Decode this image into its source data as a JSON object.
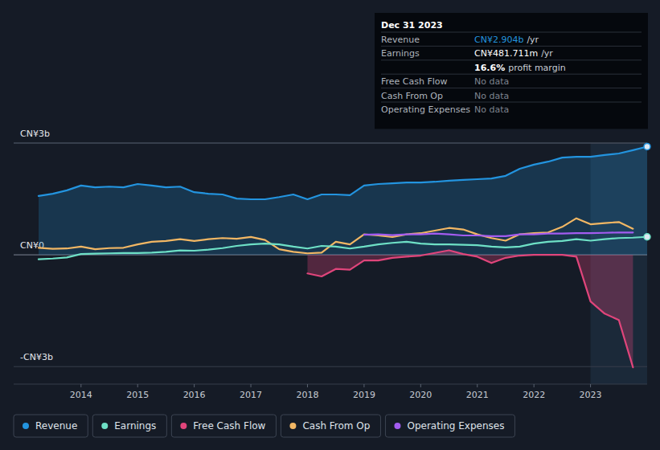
{
  "chart_data": {
    "type": "line",
    "x": [
      2013.25,
      2013.5,
      2013.75,
      2014,
      2014.25,
      2014.5,
      2014.75,
      2015,
      2015.25,
      2015.5,
      2015.75,
      2016,
      2016.25,
      2016.5,
      2016.75,
      2017,
      2017.25,
      2017.5,
      2017.75,
      2018,
      2018.25,
      2018.5,
      2018.75,
      2019,
      2019.25,
      2019.5,
      2019.75,
      2020,
      2020.25,
      2020.5,
      2020.75,
      2021,
      2021.25,
      2021.5,
      2021.75,
      2022,
      2022.25,
      2022.5,
      2022.75,
      2023,
      2023.25,
      2023.5,
      2023.75,
      2024
    ],
    "xlim": [
      2012.81,
      2024.0
    ],
    "xticks": [
      2014,
      2015,
      2016,
      2017,
      2018,
      2019,
      2020,
      2021,
      2022,
      2023
    ],
    "ylim": [
      -3.47,
      3.0
    ],
    "yticks": [
      {
        "value": 3,
        "label": "CN¥3b"
      },
      {
        "value": 0,
        "label": "CN¥0"
      },
      {
        "value": -3,
        "label": "-CN¥3b"
      }
    ],
    "grid": true,
    "legend": "bottom-left",
    "series": [
      {
        "name": "Revenue",
        "color": "#2394df",
        "values": [
          1.58,
          1.64,
          1.73,
          1.86,
          1.81,
          1.83,
          1.81,
          1.9,
          1.86,
          1.81,
          1.83,
          1.68,
          1.64,
          1.62,
          1.51,
          1.49,
          1.49,
          1.55,
          1.62,
          1.49,
          1.62,
          1.62,
          1.6,
          1.86,
          1.9,
          1.92,
          1.94,
          1.94,
          1.96,
          1.99,
          2.01,
          2.03,
          2.05,
          2.12,
          2.31,
          2.42,
          2.5,
          2.61,
          2.63,
          2.63,
          2.68,
          2.72,
          2.81,
          2.904
        ]
      },
      {
        "name": "Earnings",
        "color": "#6ee0c6",
        "values": [
          -0.12,
          -0.1,
          -0.07,
          0.02,
          0.03,
          0.04,
          0.05,
          0.05,
          0.06,
          0.08,
          0.12,
          0.11,
          0.14,
          0.18,
          0.24,
          0.28,
          0.3,
          0.28,
          0.22,
          0.17,
          0.24,
          0.22,
          0.17,
          0.22,
          0.28,
          0.32,
          0.35,
          0.3,
          0.28,
          0.28,
          0.27,
          0.26,
          0.22,
          0.2,
          0.22,
          0.3,
          0.35,
          0.37,
          0.42,
          0.38,
          0.42,
          0.45,
          0.46,
          0.482
        ]
      },
      {
        "name": "Free Cash Flow",
        "color": "#e0457b",
        "values": [
          null,
          null,
          null,
          null,
          null,
          null,
          null,
          null,
          null,
          null,
          null,
          null,
          null,
          null,
          null,
          null,
          null,
          null,
          null,
          -0.5,
          -0.58,
          -0.38,
          -0.4,
          -0.15,
          -0.15,
          -0.08,
          -0.05,
          -0.02,
          0.05,
          0.12,
          0.02,
          -0.05,
          -0.22,
          -0.08,
          -0.02,
          0.0,
          0.0,
          0.0,
          -0.05,
          -1.25,
          -1.58,
          -1.75,
          -3.02,
          null
        ]
      },
      {
        "name": "Cash From Op",
        "color": "#f2b764",
        "values": [
          0.19,
          0.16,
          0.17,
          0.22,
          0.15,
          0.18,
          0.19,
          0.28,
          0.35,
          0.37,
          0.42,
          0.37,
          0.42,
          0.45,
          0.43,
          0.48,
          0.4,
          0.15,
          0.08,
          0.04,
          0.06,
          0.35,
          0.28,
          0.55,
          0.52,
          0.48,
          0.55,
          0.58,
          0.65,
          0.72,
          0.68,
          0.55,
          0.45,
          0.38,
          0.55,
          0.58,
          0.6,
          0.75,
          0.98,
          0.82,
          0.85,
          0.88,
          0.7,
          null
        ]
      },
      {
        "name": "Operating Expenses",
        "color": "#a35cf0",
        "values": [
          null,
          null,
          null,
          null,
          null,
          null,
          null,
          null,
          null,
          null,
          null,
          null,
          null,
          null,
          null,
          null,
          null,
          null,
          null,
          null,
          null,
          null,
          null,
          0.54,
          0.55,
          0.53,
          0.55,
          0.55,
          0.57,
          0.55,
          0.52,
          0.52,
          0.5,
          0.5,
          0.55,
          0.55,
          0.57,
          0.57,
          0.58,
          0.58,
          0.59,
          0.6,
          0.6,
          null
        ]
      }
    ],
    "annotations": {
      "tooltip": {
        "date": "Dec 31 2023",
        "rows": [
          {
            "label": "Revenue",
            "value": "CN¥2.904b",
            "unit": "/yr",
            "color": "#2394df"
          },
          {
            "label": "Earnings",
            "value": "CN¥481.711m",
            "unit": "/yr"
          },
          {
            "value": "16.6%",
            "note": "profit margin"
          },
          {
            "label": "Free Cash Flow",
            "value": "No data"
          },
          {
            "label": "Cash From Op",
            "value": "No data"
          },
          {
            "label": "Operating Expenses",
            "value": "No data"
          }
        ]
      }
    }
  }
}
